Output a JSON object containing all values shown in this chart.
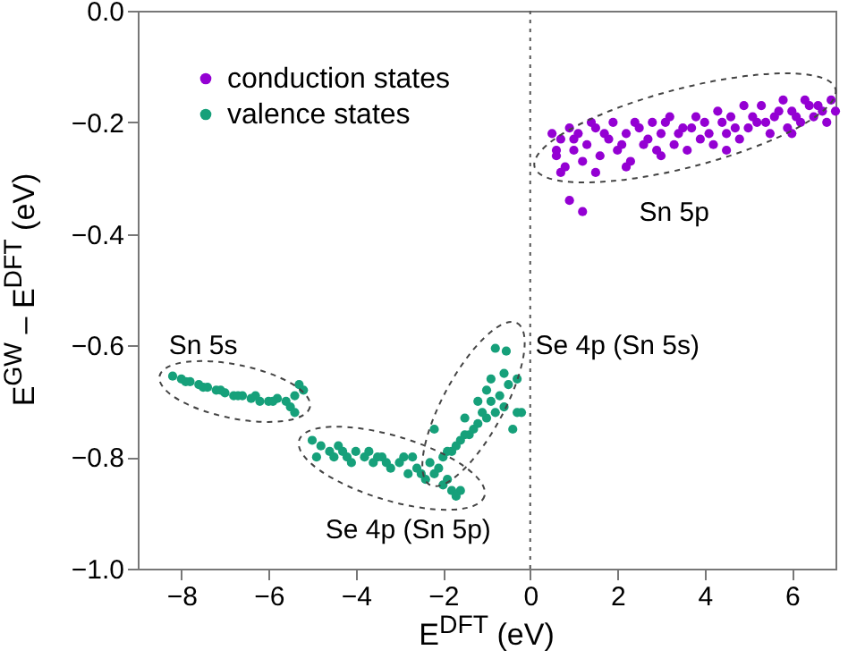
{
  "chart_data": {
    "type": "scatter",
    "xlabel": "E$^{DFT}$ (eV)",
    "ylabel": "E$^{GW}$ – E$^{DFT}$ (eV)",
    "xlim": [
      -9,
      7
    ],
    "ylim": [
      -1.0,
      0.0
    ],
    "xticks": [
      -8,
      -6,
      -4,
      -2,
      0,
      2,
      4,
      6
    ],
    "yticks": [
      {
        "value": -1.0,
        "label": "−1.0"
      },
      -0.8,
      -0.6,
      -0.4,
      -0.2,
      {
        "value": 0.0,
        "label": "0.0"
      }
    ],
    "grid": false,
    "legend": "top left",
    "marker": "circle",
    "series": [
      {
        "name": "conduction states",
        "color": "#9400d3",
        "x": [
          0.5,
          0.6,
          0.7,
          0.8,
          0.9,
          1.0,
          1.1,
          1.2,
          1.3,
          1.5,
          1.6,
          1.8,
          1.9,
          2.0,
          2.2,
          2.3,
          2.5,
          2.6,
          2.8,
          2.9,
          3.0,
          3.2,
          3.3,
          3.5,
          3.6,
          3.8,
          3.9,
          4.0,
          4.2,
          4.3,
          4.5,
          4.6,
          4.8,
          4.9,
          5.0,
          5.2,
          5.3,
          5.5,
          5.6,
          5.8,
          5.9,
          6.0,
          6.2,
          6.3,
          6.5,
          6.6,
          6.8,
          6.9,
          7.0,
          0.6,
          1.0,
          1.4,
          1.7,
          2.1,
          2.4,
          2.7,
          3.1,
          3.4,
          3.7,
          4.1,
          4.4,
          4.7,
          5.1,
          5.4,
          5.7,
          6.1,
          6.4,
          6.7,
          0.9,
          1.2,
          0.7,
          1.5,
          2.2,
          3.0,
          4.5,
          6.0
        ],
        "values": [
          -0.22,
          -0.26,
          -0.23,
          -0.28,
          -0.21,
          -0.25,
          -0.22,
          -0.27,
          -0.24,
          -0.21,
          -0.26,
          -0.23,
          -0.2,
          -0.25,
          -0.22,
          -0.27,
          -0.21,
          -0.24,
          -0.2,
          -0.25,
          -0.22,
          -0.19,
          -0.24,
          -0.21,
          -0.25,
          -0.19,
          -0.23,
          -0.2,
          -0.24,
          -0.18,
          -0.22,
          -0.19,
          -0.23,
          -0.17,
          -0.21,
          -0.2,
          -0.17,
          -0.22,
          -0.19,
          -0.16,
          -0.21,
          -0.18,
          -0.2,
          -0.16,
          -0.19,
          -0.17,
          -0.2,
          -0.16,
          -0.18,
          -0.25,
          -0.23,
          -0.2,
          -0.22,
          -0.24,
          -0.2,
          -0.23,
          -0.2,
          -0.22,
          -0.21,
          -0.22,
          -0.2,
          -0.21,
          -0.19,
          -0.2,
          -0.18,
          -0.19,
          -0.17,
          -0.18,
          -0.34,
          -0.36,
          -0.29,
          -0.29,
          -0.28,
          -0.26,
          -0.25,
          -0.22
        ]
      },
      {
        "name": "valence states",
        "color": "#16a07a",
        "x": [
          -8.2,
          -8.0,
          -7.8,
          -7.6,
          -7.4,
          -7.2,
          -7.0,
          -6.8,
          -6.6,
          -6.4,
          -6.2,
          -6.0,
          -5.8,
          -5.6,
          -5.4,
          -5.3,
          -5.2,
          -7.9,
          -7.5,
          -7.1,
          -6.7,
          -6.3,
          -5.9,
          -5.5,
          -5.4,
          -5.0,
          -4.8,
          -4.6,
          -4.4,
          -4.2,
          -4.0,
          -3.8,
          -3.6,
          -3.4,
          -3.2,
          -3.0,
          -2.8,
          -2.6,
          -2.4,
          -2.2,
          -2.0,
          -1.8,
          -1.6,
          -4.9,
          -4.5,
          -4.1,
          -3.7,
          -3.3,
          -2.9,
          -2.5,
          -2.1,
          -1.9,
          -1.7,
          -4.3,
          -3.5,
          -2.7,
          -2.3,
          -2.0,
          -1.8,
          -1.6,
          -1.4,
          -1.2,
          -1.0,
          -0.8,
          -0.6,
          -0.4,
          -0.2,
          -1.9,
          -1.7,
          -1.5,
          -1.3,
          -1.1,
          -0.9,
          -0.7,
          -0.5,
          -0.3,
          -1.5,
          -1.0,
          -0.9,
          -0.6,
          -0.8,
          -0.55,
          -0.3,
          -1.2,
          -2.2
        ],
        "values": [
          -0.655,
          -0.66,
          -0.665,
          -0.67,
          -0.675,
          -0.68,
          -0.685,
          -0.69,
          -0.69,
          -0.695,
          -0.7,
          -0.7,
          -0.695,
          -0.7,
          -0.69,
          -0.67,
          -0.68,
          -0.665,
          -0.675,
          -0.68,
          -0.69,
          -0.69,
          -0.7,
          -0.71,
          -0.72,
          -0.77,
          -0.78,
          -0.79,
          -0.78,
          -0.8,
          -0.79,
          -0.8,
          -0.81,
          -0.8,
          -0.82,
          -0.81,
          -0.83,
          -0.82,
          -0.84,
          -0.83,
          -0.85,
          -0.86,
          -0.86,
          -0.8,
          -0.8,
          -0.81,
          -0.79,
          -0.81,
          -0.8,
          -0.83,
          -0.82,
          -0.84,
          -0.87,
          -0.79,
          -0.8,
          -0.8,
          -0.81,
          -0.8,
          -0.79,
          -0.77,
          -0.76,
          -0.74,
          -0.73,
          -0.72,
          -0.71,
          -0.75,
          -0.72,
          -0.79,
          -0.78,
          -0.76,
          -0.75,
          -0.72,
          -0.7,
          -0.69,
          -0.67,
          -0.66,
          -0.73,
          -0.68,
          -0.66,
          -0.65,
          -0.605,
          -0.61,
          -0.72,
          -0.7,
          -0.75
        ]
      }
    ],
    "ref_lines": [
      {
        "axis": "x",
        "value": 0,
        "color": "#555555",
        "line_style": "dotted"
      }
    ],
    "annotations": [
      "Sn 5p",
      "Sn 5s",
      "Se 4p (Sn 5s)",
      "Se 4p (Sn 5p)"
    ]
  }
}
